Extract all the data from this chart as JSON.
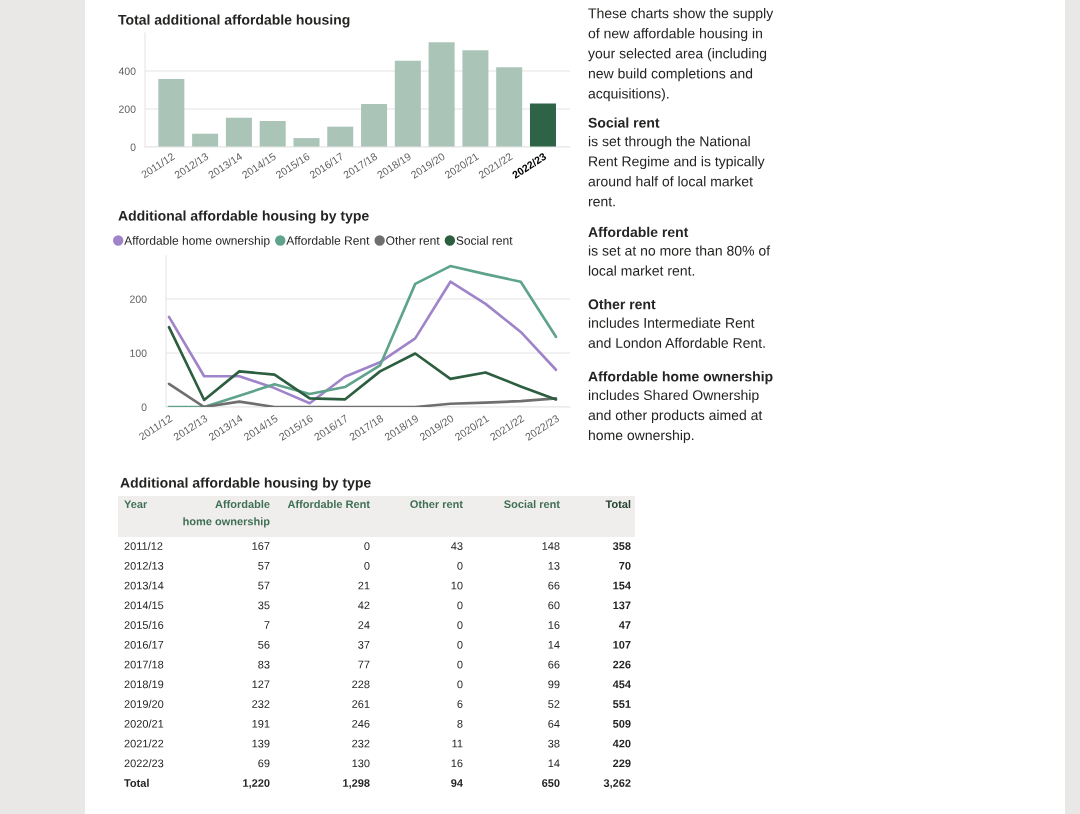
{
  "chart_data": [
    {
      "type": "bar",
      "title": "Total additional affordable housing",
      "categories": [
        "2011/12",
        "2012/13",
        "2013/14",
        "2014/15",
        "2015/16",
        "2016/17",
        "2017/18",
        "2018/19",
        "2019/20",
        "2020/21",
        "2021/22",
        "2022/23"
      ],
      "values": [
        358,
        70,
        154,
        137,
        47,
        107,
        226,
        454,
        551,
        509,
        420,
        229
      ],
      "colors": [
        "#aac4b8",
        "#aac4b8",
        "#aac4b8",
        "#aac4b8",
        "#aac4b8",
        "#aac4b8",
        "#aac4b8",
        "#aac4b8",
        "#aac4b8",
        "#aac4b8",
        "#aac4b8",
        "#2e6348"
      ],
      "ylim": [
        0,
        600
      ],
      "yticks": [
        0,
        200,
        400
      ],
      "grid": "y"
    },
    {
      "type": "line",
      "title": "Additional affordable housing by type",
      "categories": [
        "2011/12",
        "2012/13",
        "2013/14",
        "2014/15",
        "2015/16",
        "2016/17",
        "2017/18",
        "2018/19",
        "2019/20",
        "2020/21",
        "2021/22",
        "2022/23"
      ],
      "series": [
        {
          "name": "Affordable home ownership",
          "color": "#a084c9",
          "values": [
            167,
            57,
            57,
            35,
            7,
            56,
            83,
            127,
            232,
            191,
            139,
            69
          ]
        },
        {
          "name": "Affordable Rent",
          "color": "#5ea38a",
          "values": [
            0,
            0,
            21,
            42,
            24,
            37,
            77,
            228,
            261,
            246,
            232,
            130
          ]
        },
        {
          "name": "Other rent",
          "color": "#6f6f6f",
          "values": [
            43,
            0,
            10,
            0,
            0,
            0,
            0,
            0,
            6,
            8,
            11,
            16
          ]
        },
        {
          "name": "Social rent",
          "color": "#2c5e3f",
          "values": [
            148,
            13,
            66,
            60,
            16,
            14,
            66,
            99,
            52,
            64,
            38,
            14
          ]
        }
      ],
      "ylim": [
        0,
        280
      ],
      "yticks": [
        0,
        100,
        200
      ],
      "grid": "y",
      "legend": "top"
    },
    {
      "type": "other",
      "title": "Additional affordable housing by type",
      "ylabel": "Year",
      "categories": [
        "2011/12",
        "2012/13",
        "2013/14",
        "2014/15",
        "2015/16",
        "2016/17",
        "2017/18",
        "2018/19",
        "2019/20",
        "2020/21",
        "2021/22",
        "2022/23",
        "Total"
      ],
      "series": [
        {
          "name": "Affordable home ownership",
          "values": [
            167,
            57,
            57,
            35,
            7,
            56,
            83,
            127,
            232,
            191,
            139,
            69,
            1220
          ],
          "value_labels": [
            "167",
            "57",
            "57",
            "35",
            "7",
            "56",
            "83",
            "127",
            "232",
            "191",
            "139",
            "69",
            "1,220"
          ]
        },
        {
          "name": "Affordable Rent",
          "values": [
            0,
            0,
            21,
            42,
            24,
            37,
            77,
            228,
            261,
            246,
            232,
            130,
            1298
          ],
          "value_labels": [
            "0",
            "0",
            "21",
            "42",
            "24",
            "37",
            "77",
            "228",
            "261",
            "246",
            "232",
            "130",
            "1,298"
          ]
        },
        {
          "name": "Other rent",
          "values": [
            43,
            0,
            10,
            0,
            0,
            0,
            0,
            0,
            6,
            8,
            11,
            16,
            94
          ],
          "value_labels": [
            "43",
            "0",
            "10",
            "0",
            "0",
            "0",
            "0",
            "0",
            "6",
            "8",
            "11",
            "16",
            "94"
          ]
        },
        {
          "name": "Social rent",
          "values": [
            148,
            13,
            66,
            60,
            16,
            14,
            66,
            99,
            52,
            64,
            38,
            14,
            650
          ],
          "value_labels": [
            "148",
            "13",
            "66",
            "60",
            "16",
            "14",
            "66",
            "99",
            "52",
            "64",
            "38",
            "14",
            "650"
          ]
        },
        {
          "name": "Total",
          "values": [
            358,
            70,
            154,
            137,
            47,
            107,
            226,
            454,
            551,
            509,
            420,
            229,
            3262
          ],
          "value_labels": [
            "358",
            "70",
            "154",
            "137",
            "47",
            "107",
            "226",
            "454",
            "551",
            "509",
            "420",
            "229",
            "3,262"
          ]
        }
      ]
    },
    {
      "type": "other",
      "annotations": [
        "These charts show the supply of new affordable housing in your selected area (including new build completions and acquisitions).",
        "Social rent",
        "is set through the National Rent Regime and is typically around half of local market rent.",
        "Affordable rent",
        "is set at no more than 80% of local market rent.",
        "Other rent",
        "includes Intermediate Rent and London Affordable Rent.",
        "Affordable home ownership",
        "includes Shared Ownership and other products aimed at home ownership."
      ]
    }
  ]
}
